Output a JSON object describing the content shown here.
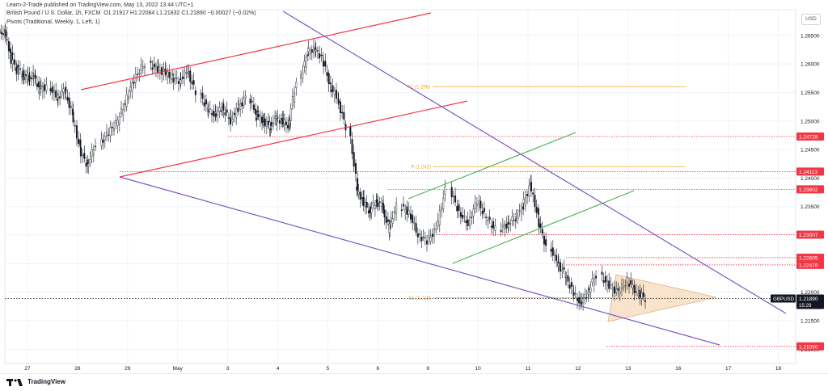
{
  "header": {
    "published": "Learn-2-Trade published on TradingView.com, May 13, 2022 13:44 UTC+1",
    "symbol_line": "British Pound / U.S. Dollar, 1h, FXCM",
    "ohlc": "O1.21917  H1.22084  L1.21832  C1.21890  −0.00027 (−0.02%)",
    "indicator": "Pivots (Traditional, Weekly, 1, Left, 1)"
  },
  "currency_button": "USD",
  "footer": {
    "brand": "TradingView"
  },
  "chart_data": {
    "type": "candlestick",
    "symbol": "GBPUSD",
    "timeframe": "1h",
    "x_ticks": [
      "27",
      "28",
      "29",
      "May",
      "3",
      "4",
      "5",
      "6",
      "9",
      "10",
      "11",
      "12",
      "13",
      "16",
      "17",
      "18"
    ],
    "y_ticks": [
      "1.26500",
      "1.26000",
      "1.25500",
      "1.25000",
      "1.24500",
      "1.24000",
      "1.23500",
      "1.23000",
      "1.22500",
      "1.22000",
      "1.21500",
      "1.21000"
    ],
    "ylim": [
      1.2075,
      1.2695
    ],
    "last_price": {
      "label": "GBPUSD",
      "value": "1.21890",
      "countdown": "15:29"
    },
    "price_levels": [
      {
        "value": "1.24728",
        "price": 1.24728
      },
      {
        "value": "1.24113",
        "price": 1.24113
      },
      {
        "value": "1.23802",
        "price": 1.23802
      },
      {
        "value": "1.23007",
        "price": 1.23007
      },
      {
        "value": "1.22605",
        "price": 1.22605
      },
      {
        "value": "1.22478",
        "price": 1.22478
      },
      {
        "value": "1.21050",
        "price": 1.2105
      }
    ],
    "pivots": [
      {
        "label": "R1 (1.256)",
        "price": 1.256
      },
      {
        "label": "P (1.242)",
        "price": 1.242
      },
      {
        "label": "S1 (1.219)",
        "price": 1.219
      }
    ],
    "price_path": [
      [
        "27",
        1.2655
      ],
      [
        "27",
        1.261
      ],
      [
        "27",
        1.259
      ],
      [
        "27",
        1.258
      ],
      [
        "27",
        1.2575
      ],
      [
        "27",
        1.258
      ],
      [
        "27",
        1.2555
      ],
      [
        "27",
        1.256
      ],
      [
        "28",
        1.254
      ],
      [
        "28",
        1.2555
      ],
      [
        "28",
        1.251
      ],
      [
        "28",
        1.245
      ],
      [
        "28",
        1.242
      ],
      [
        "28",
        1.246
      ],
      [
        "29",
        1.248
      ],
      [
        "29",
        1.25
      ],
      [
        "29",
        1.254
      ],
      [
        "29",
        1.258
      ],
      [
        "29",
        1.26
      ],
      [
        "May",
        1.259
      ],
      [
        "May",
        1.2585
      ],
      [
        "May",
        1.2575
      ],
      [
        "May",
        1.257
      ],
      [
        "May",
        1.259
      ],
      [
        "May",
        1.255
      ],
      [
        "3",
        1.252
      ],
      [
        "3",
        1.251
      ],
      [
        "3",
        1.2525
      ],
      [
        "3",
        1.25
      ],
      [
        "3",
        1.252
      ],
      [
        "3",
        1.254
      ],
      [
        "4",
        1.251
      ],
      [
        "4",
        1.25
      ],
      [
        "4",
        1.249
      ],
      [
        "4",
        1.2505
      ],
      [
        "4",
        1.25
      ],
      [
        "4",
        1.249
      ],
      [
        "4",
        1.257
      ],
      [
        "5",
        1.262
      ],
      [
        "5",
        1.2625
      ],
      [
        "5",
        1.261
      ],
      [
        "5",
        1.256
      ],
      [
        "5",
        1.254
      ],
      [
        "5",
        1.249
      ],
      [
        "6",
        1.238
      ],
      [
        "6",
        1.236
      ],
      [
        "6",
        1.234
      ],
      [
        "6",
        1.236
      ],
      [
        "6",
        1.235
      ],
      [
        "6",
        1.231
      ],
      [
        "6",
        1.235
      ],
      [
        "9",
        1.234
      ],
      [
        "9",
        1.23
      ],
      [
        "9",
        1.229
      ],
      [
        "9",
        1.231
      ],
      [
        "9",
        1.238
      ],
      [
        "10",
        1.234
      ],
      [
        "10",
        1.232
      ],
      [
        "10",
        1.236
      ],
      [
        "10",
        1.233
      ],
      [
        "10",
        1.231
      ],
      [
        "11",
        1.232
      ],
      [
        "11",
        1.233
      ],
      [
        "11",
        1.235
      ],
      [
        "11",
        1.239
      ],
      [
        "11",
        1.233
      ],
      [
        "11",
        1.228
      ],
      [
        "12",
        1.225
      ],
      [
        "12",
        1.223
      ],
      [
        "12",
        1.22
      ],
      [
        "12",
        1.218
      ],
      [
        "12",
        1.22
      ],
      [
        "12",
        1.223
      ],
      [
        "13",
        1.221
      ],
      [
        "13",
        1.22
      ],
      [
        "13",
        1.222
      ],
      [
        "13",
        1.22
      ],
      [
        "13",
        1.2189
      ]
    ]
  }
}
